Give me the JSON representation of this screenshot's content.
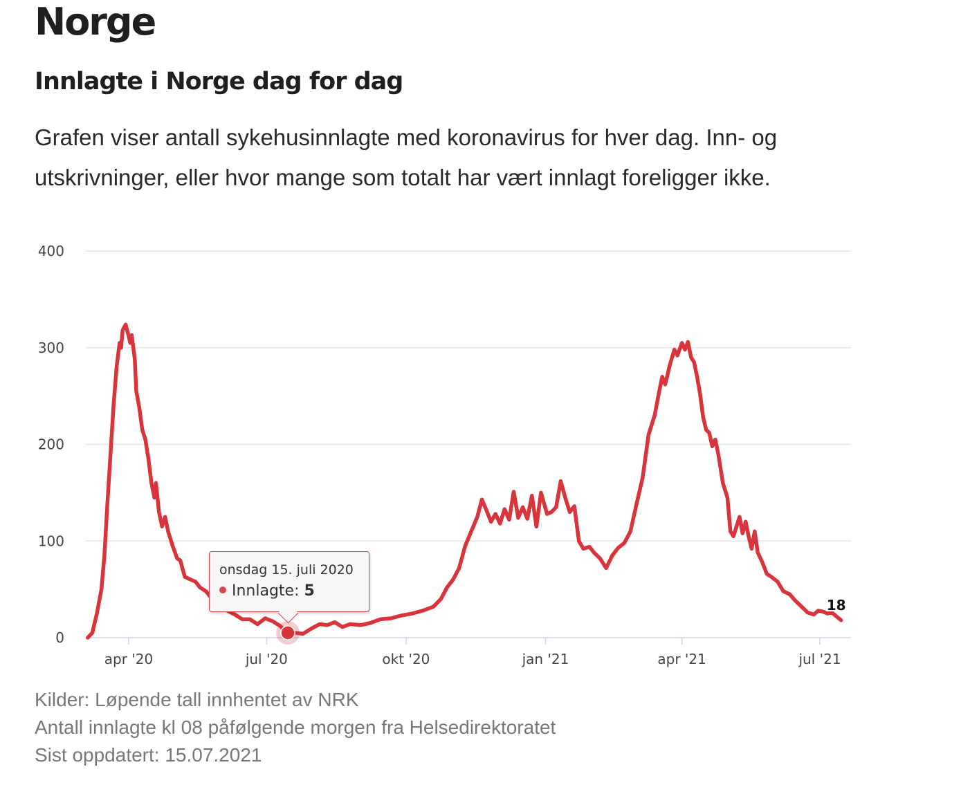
{
  "page": {
    "heading": "Norge"
  },
  "section": {
    "title": "Innlagte i Norge dag for dag",
    "description": "Grafen viser antall sykehusinnlagte med koronavirus for hver dag. Inn- og utskrivninger, eller hvor mange som totalt har vært innlagt foreligger ikke."
  },
  "colors": {
    "line": "#d9333b",
    "grid": "#e6e6e6",
    "axis": "#ccd6eb"
  },
  "chart_data": {
    "type": "line",
    "title": "Innlagte i Norge dag for dag",
    "xlabel": "",
    "ylabel": "",
    "ylim": [
      0,
      400
    ],
    "xlim": [
      "2020-03-01",
      "2021-07-20"
    ],
    "y_ticks": [
      0,
      100,
      200,
      300,
      400
    ],
    "x_ticks": [
      {
        "date": "2020-04-01",
        "label": "apr '20"
      },
      {
        "date": "2020-07-01",
        "label": "jul '20"
      },
      {
        "date": "2020-10-01",
        "label": "okt '20"
      },
      {
        "date": "2021-01-01",
        "label": "jan '21"
      },
      {
        "date": "2021-04-01",
        "label": "apr '21"
      },
      {
        "date": "2021-07-01",
        "label": "jul '21"
      }
    ],
    "grid": true,
    "legend": "none",
    "series": [
      {
        "points": [
          [
            "2020-03-05",
            0
          ],
          [
            "2020-03-08",
            5
          ],
          [
            "2020-03-11",
            25
          ],
          [
            "2020-03-14",
            50
          ],
          [
            "2020-03-16",
            85
          ],
          [
            "2020-03-18",
            140
          ],
          [
            "2020-03-20",
            190
          ],
          [
            "2020-03-22",
            240
          ],
          [
            "2020-03-24",
            280
          ],
          [
            "2020-03-26",
            305
          ],
          [
            "2020-03-27",
            300
          ],
          [
            "2020-03-28",
            318
          ],
          [
            "2020-03-30",
            324
          ],
          [
            "2020-04-01",
            312
          ],
          [
            "2020-04-02",
            305
          ],
          [
            "2020-04-03",
            313
          ],
          [
            "2020-04-05",
            288
          ],
          [
            "2020-04-06",
            255
          ],
          [
            "2020-04-08",
            238
          ],
          [
            "2020-04-10",
            215
          ],
          [
            "2020-04-12",
            205
          ],
          [
            "2020-04-14",
            185
          ],
          [
            "2020-04-16",
            160
          ],
          [
            "2020-04-18",
            145
          ],
          [
            "2020-04-19",
            160
          ],
          [
            "2020-04-21",
            130
          ],
          [
            "2020-04-23",
            115
          ],
          [
            "2020-04-25",
            125
          ],
          [
            "2020-04-27",
            110
          ],
          [
            "2020-04-30",
            95
          ],
          [
            "2020-05-03",
            82
          ],
          [
            "2020-05-05",
            80
          ],
          [
            "2020-05-08",
            63
          ],
          [
            "2020-05-12",
            60
          ],
          [
            "2020-05-15",
            58
          ],
          [
            "2020-05-18",
            52
          ],
          [
            "2020-05-22",
            48
          ],
          [
            "2020-05-26",
            40
          ],
          [
            "2020-06-01",
            34
          ],
          [
            "2020-06-05",
            28
          ],
          [
            "2020-06-10",
            24
          ],
          [
            "2020-06-15",
            19
          ],
          [
            "2020-06-20",
            19
          ],
          [
            "2020-06-25",
            14
          ],
          [
            "2020-06-30",
            20
          ],
          [
            "2020-07-05",
            17
          ],
          [
            "2020-07-10",
            12
          ],
          [
            "2020-07-15",
            5
          ],
          [
            "2020-07-20",
            5
          ],
          [
            "2020-07-25",
            4
          ],
          [
            "2020-07-30",
            9
          ],
          [
            "2020-08-05",
            14
          ],
          [
            "2020-08-10",
            13
          ],
          [
            "2020-08-15",
            16
          ],
          [
            "2020-08-20",
            11
          ],
          [
            "2020-08-25",
            14
          ],
          [
            "2020-09-01",
            13
          ],
          [
            "2020-09-07",
            15
          ],
          [
            "2020-09-14",
            19
          ],
          [
            "2020-09-21",
            20
          ],
          [
            "2020-09-28",
            23
          ],
          [
            "2020-10-05",
            25
          ],
          [
            "2020-10-12",
            28
          ],
          [
            "2020-10-19",
            32
          ],
          [
            "2020-10-24",
            40
          ],
          [
            "2020-10-28",
            52
          ],
          [
            "2020-11-01",
            60
          ],
          [
            "2020-11-05",
            72
          ],
          [
            "2020-11-09",
            95
          ],
          [
            "2020-11-13",
            110
          ],
          [
            "2020-11-17",
            125
          ],
          [
            "2020-11-20",
            143
          ],
          [
            "2020-11-23",
            132
          ],
          [
            "2020-11-26",
            120
          ],
          [
            "2020-11-29",
            128
          ],
          [
            "2020-12-02",
            118
          ],
          [
            "2020-12-05",
            133
          ],
          [
            "2020-12-08",
            122
          ],
          [
            "2020-12-11",
            151
          ],
          [
            "2020-12-14",
            124
          ],
          [
            "2020-12-17",
            135
          ],
          [
            "2020-12-20",
            123
          ],
          [
            "2020-12-23",
            147
          ],
          [
            "2020-12-26",
            115
          ],
          [
            "2020-12-29",
            150
          ],
          [
            "2021-01-02",
            128
          ],
          [
            "2021-01-05",
            130
          ],
          [
            "2021-01-08",
            135
          ],
          [
            "2021-01-11",
            162
          ],
          [
            "2021-01-14",
            145
          ],
          [
            "2021-01-17",
            130
          ],
          [
            "2021-01-20",
            136
          ],
          [
            "2021-01-23",
            100
          ],
          [
            "2021-01-26",
            92
          ],
          [
            "2021-01-30",
            94
          ],
          [
            "2021-02-02",
            88
          ],
          [
            "2021-02-06",
            82
          ],
          [
            "2021-02-10",
            72
          ],
          [
            "2021-02-14",
            85
          ],
          [
            "2021-02-18",
            93
          ],
          [
            "2021-02-22",
            98
          ],
          [
            "2021-02-26",
            110
          ],
          [
            "2021-03-02",
            138
          ],
          [
            "2021-03-06",
            165
          ],
          [
            "2021-03-10",
            210
          ],
          [
            "2021-03-14",
            230
          ],
          [
            "2021-03-17",
            255
          ],
          [
            "2021-03-19",
            270
          ],
          [
            "2021-03-21",
            262
          ],
          [
            "2021-03-24",
            282
          ],
          [
            "2021-03-27",
            298
          ],
          [
            "2021-03-29",
            292
          ],
          [
            "2021-04-01",
            305
          ],
          [
            "2021-04-03",
            298
          ],
          [
            "2021-04-05",
            306
          ],
          [
            "2021-04-07",
            290
          ],
          [
            "2021-04-09",
            285
          ],
          [
            "2021-04-11",
            270
          ],
          [
            "2021-04-13",
            252
          ],
          [
            "2021-04-15",
            228
          ],
          [
            "2021-04-17",
            215
          ],
          [
            "2021-04-19",
            212
          ],
          [
            "2021-04-21",
            198
          ],
          [
            "2021-04-23",
            205
          ],
          [
            "2021-04-25",
            190
          ],
          [
            "2021-04-28",
            160
          ],
          [
            "2021-05-01",
            145
          ],
          [
            "2021-05-03",
            110
          ],
          [
            "2021-05-05",
            105
          ],
          [
            "2021-05-07",
            115
          ],
          [
            "2021-05-09",
            125
          ],
          [
            "2021-05-11",
            108
          ],
          [
            "2021-05-13",
            120
          ],
          [
            "2021-05-15",
            105
          ],
          [
            "2021-05-17",
            92
          ],
          [
            "2021-05-19",
            110
          ],
          [
            "2021-05-21",
            88
          ],
          [
            "2021-05-24",
            78
          ],
          [
            "2021-05-27",
            66
          ],
          [
            "2021-05-30",
            63
          ],
          [
            "2021-06-03",
            58
          ],
          [
            "2021-06-07",
            48
          ],
          [
            "2021-06-11",
            45
          ],
          [
            "2021-06-15",
            38
          ],
          [
            "2021-06-19",
            32
          ],
          [
            "2021-06-23",
            26
          ],
          [
            "2021-06-27",
            24
          ],
          [
            "2021-06-30",
            28
          ],
          [
            "2021-07-03",
            27
          ],
          [
            "2021-07-06",
            25
          ],
          [
            "2021-07-09",
            26
          ],
          [
            "2021-07-12",
            22
          ],
          [
            "2021-07-15",
            18
          ]
        ]
      }
    ],
    "last_point_label": "18",
    "highlight": {
      "date": "2020-07-15",
      "value": 5,
      "tooltip_date": "onsdag 15. juli 2020",
      "tooltip_series": "Innlagte:",
      "tooltip_value": "5"
    }
  },
  "sources": {
    "line1": "Kilder: Løpende tall innhentet av NRK",
    "line2": "Antall innlagte kl 08 påfølgende morgen fra Helsedirektoratet",
    "line3": "Sist oppdatert: 15.07.2021"
  }
}
